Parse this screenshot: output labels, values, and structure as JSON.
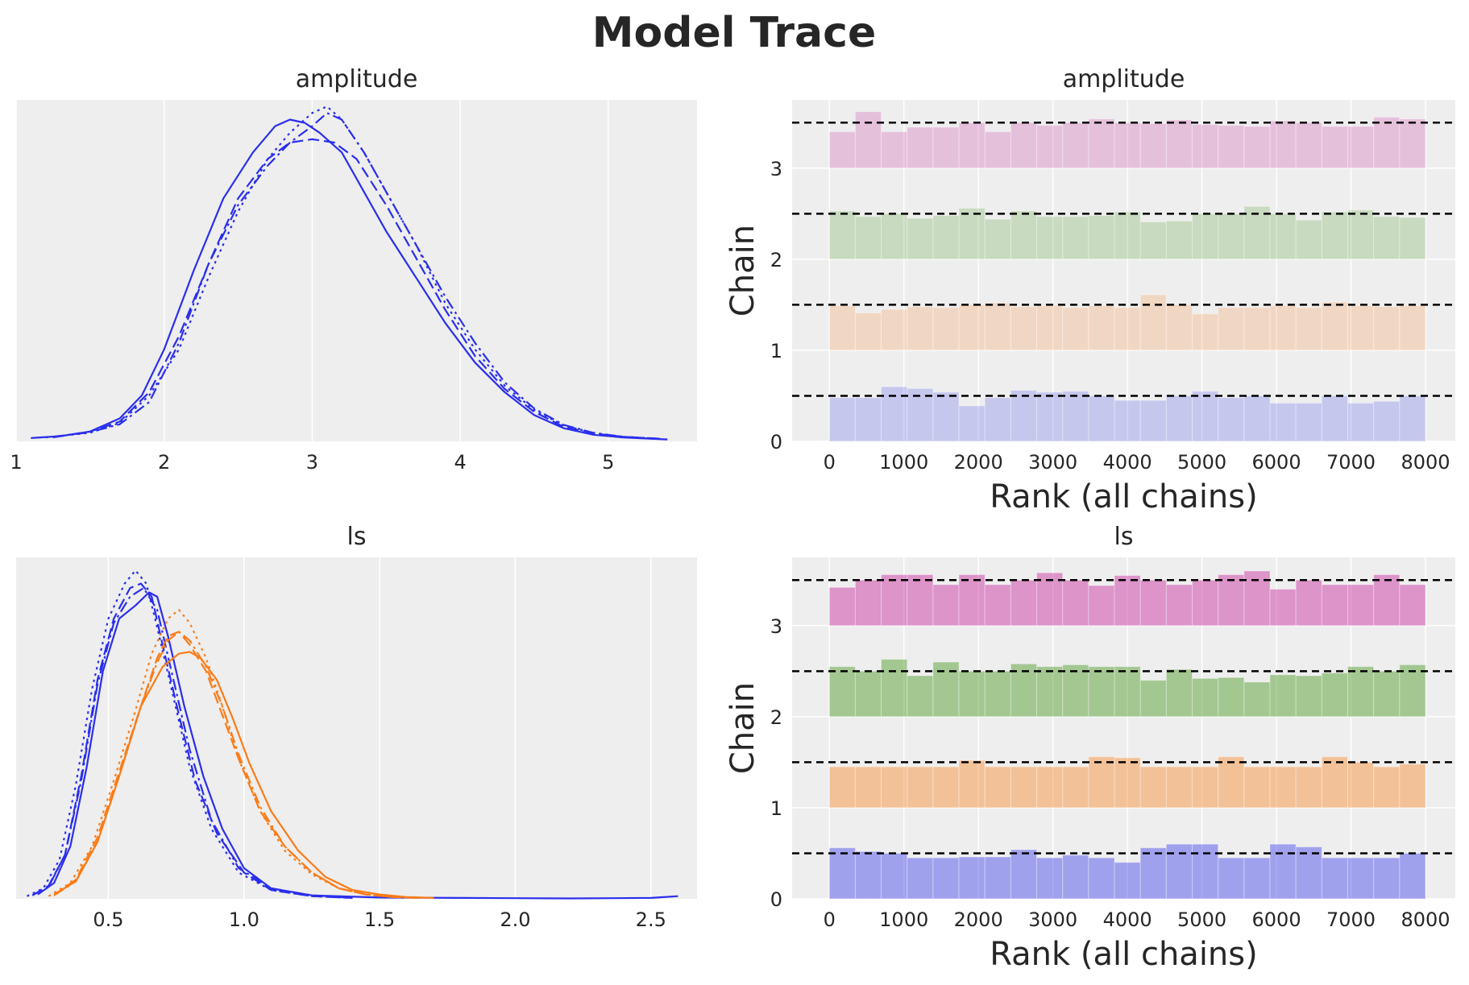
{
  "title": "Model Trace",
  "colors": {
    "background": "#eeeeee",
    "grid": "#ffffff",
    "blue": "#2a2eec",
    "orange": "#fa7c17",
    "chain_colors": [
      "#2a2eec",
      "#fa7c17",
      "#328c06",
      "#c10c90"
    ],
    "reference": "#000000"
  },
  "chart_data": [
    {
      "type": "line",
      "title": "amplitude",
      "xlabel": "",
      "ylabel": "",
      "grid": true,
      "xlim": [
        1.0,
        5.6
      ],
      "ylim": [
        0,
        0.52
      ],
      "x_ticks": [
        1,
        2,
        3,
        4,
        5
      ],
      "x_tick_labels": [
        "1",
        "2",
        "3",
        "4",
        "5"
      ],
      "y_ticks_visible": false,
      "series": [
        {
          "group": 0,
          "linestyle": "solid",
          "x": [
            1.1,
            1.3,
            1.5,
            1.7,
            1.85,
            2.0,
            2.2,
            2.4,
            2.6,
            2.75,
            2.85,
            2.95,
            3.05,
            3.2,
            3.35,
            3.5,
            3.7,
            3.9,
            4.1,
            4.3,
            4.5,
            4.7,
            4.9,
            5.1,
            5.4
          ],
          "y": [
            0.005,
            0.008,
            0.015,
            0.035,
            0.07,
            0.14,
            0.26,
            0.37,
            0.44,
            0.48,
            0.49,
            0.485,
            0.47,
            0.44,
            0.38,
            0.32,
            0.25,
            0.18,
            0.12,
            0.075,
            0.04,
            0.02,
            0.01,
            0.006,
            0.003
          ]
        },
        {
          "group": 0,
          "linestyle": "dashed",
          "x": [
            1.25,
            1.5,
            1.7,
            1.9,
            2.1,
            2.3,
            2.5,
            2.7,
            2.85,
            3.0,
            3.15,
            3.3,
            3.5,
            3.7,
            3.9,
            4.1,
            4.3,
            4.5,
            4.7,
            4.9,
            5.1,
            5.35
          ],
          "y": [
            0.006,
            0.015,
            0.03,
            0.075,
            0.16,
            0.27,
            0.37,
            0.43,
            0.455,
            0.46,
            0.455,
            0.43,
            0.36,
            0.28,
            0.2,
            0.13,
            0.08,
            0.045,
            0.022,
            0.012,
            0.007,
            0.004
          ]
        },
        {
          "group": 0,
          "linestyle": "dotted",
          "x": [
            1.2,
            1.5,
            1.7,
            1.9,
            2.1,
            2.3,
            2.5,
            2.7,
            2.85,
            3.0,
            3.1,
            3.2,
            3.35,
            3.5,
            3.7,
            3.9,
            4.1,
            4.3,
            4.5,
            4.7,
            4.9,
            5.1,
            5.3
          ],
          "y": [
            0.006,
            0.013,
            0.028,
            0.07,
            0.14,
            0.25,
            0.35,
            0.43,
            0.47,
            0.5,
            0.51,
            0.49,
            0.44,
            0.38,
            0.3,
            0.21,
            0.14,
            0.085,
            0.048,
            0.024,
            0.013,
            0.007,
            0.004
          ]
        },
        {
          "group": 0,
          "linestyle": "dashdot",
          "x": [
            1.25,
            1.5,
            1.7,
            1.9,
            2.1,
            2.3,
            2.5,
            2.7,
            2.85,
            3.0,
            3.1,
            3.2,
            3.35,
            3.5,
            3.7,
            3.9,
            4.1,
            4.3,
            4.5,
            4.7,
            4.9,
            5.1,
            5.35
          ],
          "y": [
            0.007,
            0.014,
            0.026,
            0.06,
            0.15,
            0.27,
            0.36,
            0.42,
            0.455,
            0.48,
            0.5,
            0.49,
            0.44,
            0.38,
            0.3,
            0.22,
            0.15,
            0.09,
            0.05,
            0.025,
            0.013,
            0.007,
            0.004
          ]
        }
      ]
    },
    {
      "type": "bar",
      "title": "amplitude",
      "xlabel": "Rank (all chains)",
      "ylabel": "Chain",
      "grid": true,
      "xlim": [
        -500,
        8400
      ],
      "ylim": [
        0,
        3.75
      ],
      "x_ticks": [
        0,
        1000,
        2000,
        3000,
        4000,
        5000,
        6000,
        7000,
        8000
      ],
      "x_tick_labels": [
        "0",
        "1000",
        "2000",
        "3000",
        "4000",
        "5000",
        "6000",
        "7000",
        "8000"
      ],
      "y_ticks": [
        0,
        1,
        2,
        3
      ],
      "y_tick_labels": [
        "0",
        "1",
        "2",
        "3"
      ],
      "bin_edges": [
        0,
        347.8,
        695.7,
        1043.5,
        1391.3,
        1739.1,
        2087,
        2434.8,
        2782.6,
        3130.4,
        3478.3,
        3826.1,
        4173.9,
        4521.7,
        4869.6,
        5217.4,
        5565.2,
        5913,
        6260.9,
        6608.7,
        6956.5,
        7304.3,
        7652.2,
        8000
      ],
      "reference_level": 0.5,
      "chains": [
        {
          "chain": 0,
          "alpha": 0.2,
          "heights": [
            0.48,
            0.48,
            0.6,
            0.58,
            0.54,
            0.39,
            0.48,
            0.56,
            0.54,
            0.55,
            0.5,
            0.45,
            0.45,
            0.5,
            0.55,
            0.48,
            0.5,
            0.42,
            0.42,
            0.5,
            0.42,
            0.44,
            0.5
          ]
        },
        {
          "chain": 1,
          "alpha": 0.2,
          "heights": [
            0.49,
            0.41,
            0.45,
            0.48,
            0.47,
            0.5,
            0.52,
            0.48,
            0.49,
            0.47,
            0.49,
            0.47,
            0.61,
            0.5,
            0.4,
            0.47,
            0.47,
            0.49,
            0.47,
            0.53,
            0.49,
            0.48,
            0.49
          ]
        },
        {
          "chain": 2,
          "alpha": 0.2,
          "heights": [
            0.53,
            0.47,
            0.5,
            0.45,
            0.48,
            0.56,
            0.44,
            0.53,
            0.47,
            0.47,
            0.48,
            0.52,
            0.41,
            0.42,
            0.5,
            0.5,
            0.58,
            0.5,
            0.43,
            0.52,
            0.54,
            0.47,
            0.46
          ]
        },
        {
          "chain": 3,
          "alpha": 0.2,
          "heights": [
            0.4,
            0.62,
            0.4,
            0.45,
            0.45,
            0.5,
            0.4,
            0.5,
            0.47,
            0.5,
            0.54,
            0.5,
            0.49,
            0.53,
            0.48,
            0.47,
            0.46,
            0.52,
            0.5,
            0.46,
            0.46,
            0.56,
            0.54
          ]
        }
      ]
    },
    {
      "type": "line",
      "title": "ls",
      "xlabel": "",
      "ylabel": "",
      "grid": true,
      "xlim": [
        0.16,
        2.67
      ],
      "ylim": [
        0,
        3.9
      ],
      "x_ticks": [
        0.5,
        1.0,
        1.5,
        2.0,
        2.5
      ],
      "x_tick_labels": [
        "0.5",
        "1.0",
        "1.5",
        "2.0",
        "2.5"
      ],
      "y_ticks_visible": false,
      "series": [
        {
          "group": 0,
          "linestyle": "solid",
          "x": [
            0.24,
            0.3,
            0.36,
            0.42,
            0.48,
            0.54,
            0.6,
            0.65,
            0.68,
            0.72,
            0.78,
            0.85,
            0.92,
            1.0,
            1.1,
            1.25,
            1.5,
            1.8,
            2.2,
            2.5,
            2.6
          ],
          "y": [
            0.05,
            0.18,
            0.6,
            1.5,
            2.6,
            3.2,
            3.35,
            3.5,
            3.45,
            3.0,
            2.2,
            1.4,
            0.8,
            0.35,
            0.12,
            0.04,
            0.015,
            0.01,
            0.005,
            0.01,
            0.03
          ]
        },
        {
          "group": 0,
          "linestyle": "dashed",
          "x": [
            0.22,
            0.28,
            0.34,
            0.4,
            0.46,
            0.52,
            0.58,
            0.62,
            0.66,
            0.7,
            0.76,
            0.82,
            0.9,
            1.0,
            1.1,
            1.25,
            1.4
          ],
          "y": [
            0.04,
            0.15,
            0.5,
            1.4,
            2.5,
            3.2,
            3.55,
            3.6,
            3.45,
            2.9,
            2.1,
            1.35,
            0.75,
            0.3,
            0.1,
            0.03,
            0.01
          ]
        },
        {
          "group": 0,
          "linestyle": "dotted",
          "x": [
            0.2,
            0.26,
            0.32,
            0.38,
            0.44,
            0.5,
            0.56,
            0.6,
            0.64,
            0.68,
            0.74,
            0.8,
            0.88,
            0.98,
            1.1,
            1.25,
            1.4
          ],
          "y": [
            0.03,
            0.12,
            0.45,
            1.3,
            2.4,
            3.2,
            3.6,
            3.75,
            3.6,
            3.1,
            2.3,
            1.5,
            0.8,
            0.3,
            0.1,
            0.03,
            0.01
          ]
        },
        {
          "group": 0,
          "linestyle": "dashdot",
          "x": [
            0.22,
            0.28,
            0.34,
            0.4,
            0.46,
            0.52,
            0.58,
            0.63,
            0.68,
            0.74,
            0.8,
            0.88,
            0.98,
            1.1,
            1.25,
            1.4
          ],
          "y": [
            0.04,
            0.14,
            0.5,
            1.35,
            2.45,
            3.15,
            3.45,
            3.55,
            3.3,
            2.5,
            1.7,
            0.9,
            0.35,
            0.12,
            0.04,
            0.01
          ]
        },
        {
          "group": 1,
          "linestyle": "solid",
          "x": [
            0.3,
            0.38,
            0.46,
            0.54,
            0.62,
            0.7,
            0.76,
            0.8,
            0.84,
            0.9,
            0.96,
            1.02,
            1.1,
            1.2,
            1.3,
            1.4,
            1.5,
            1.6,
            1.7
          ],
          "y": [
            0.05,
            0.2,
            0.65,
            1.4,
            2.2,
            2.65,
            2.8,
            2.82,
            2.75,
            2.5,
            2.05,
            1.55,
            1.0,
            0.55,
            0.25,
            0.1,
            0.05,
            0.02,
            0.01
          ]
        },
        {
          "group": 1,
          "linestyle": "dashed",
          "x": [
            0.3,
            0.38,
            0.46,
            0.54,
            0.62,
            0.68,
            0.72,
            0.76,
            0.8,
            0.86,
            0.92,
            0.98,
            1.06,
            1.15,
            1.25,
            1.35,
            1.45,
            1.55,
            1.65
          ],
          "y": [
            0.04,
            0.22,
            0.7,
            1.45,
            2.2,
            2.75,
            3.0,
            3.05,
            2.9,
            2.6,
            2.1,
            1.6,
            1.0,
            0.6,
            0.3,
            0.12,
            0.05,
            0.02,
            0.01
          ]
        },
        {
          "group": 1,
          "linestyle": "dotted",
          "x": [
            0.28,
            0.36,
            0.44,
            0.52,
            0.6,
            0.66,
            0.72,
            0.76,
            0.8,
            0.86,
            0.92,
            0.98,
            1.06,
            1.15,
            1.25,
            1.35,
            1.45,
            1.55,
            1.65
          ],
          "y": [
            0.03,
            0.18,
            0.6,
            1.35,
            2.15,
            2.8,
            3.2,
            3.3,
            3.15,
            2.75,
            2.2,
            1.6,
            1.0,
            0.55,
            0.28,
            0.12,
            0.05,
            0.02,
            0.01
          ]
        },
        {
          "group": 1,
          "linestyle": "dashdot",
          "x": [
            0.3,
            0.38,
            0.46,
            0.54,
            0.62,
            0.68,
            0.72,
            0.76,
            0.8,
            0.86,
            0.92,
            0.98,
            1.06,
            1.15,
            1.25,
            1.35,
            1.45,
            1.55,
            1.65
          ],
          "y": [
            0.04,
            0.2,
            0.65,
            1.4,
            2.2,
            2.7,
            2.95,
            3.05,
            2.95,
            2.65,
            2.2,
            1.65,
            1.05,
            0.6,
            0.3,
            0.12,
            0.05,
            0.02,
            0.01
          ]
        }
      ]
    },
    {
      "type": "bar",
      "title": "ls",
      "xlabel": "Rank (all chains)",
      "ylabel": "Chain",
      "grid": true,
      "xlim": [
        -500,
        8400
      ],
      "ylim": [
        0,
        3.75
      ],
      "x_ticks": [
        0,
        1000,
        2000,
        3000,
        4000,
        5000,
        6000,
        7000,
        8000
      ],
      "x_tick_labels": [
        "0",
        "1000",
        "2000",
        "3000",
        "4000",
        "5000",
        "6000",
        "7000",
        "8000"
      ],
      "y_ticks": [
        0,
        1,
        2,
        3
      ],
      "y_tick_labels": [
        "0",
        "1",
        "2",
        "3"
      ],
      "bin_edges": [
        0,
        347.8,
        695.7,
        1043.5,
        1391.3,
        1739.1,
        2087,
        2434.8,
        2782.6,
        3130.4,
        3478.3,
        3826.1,
        4173.9,
        4521.7,
        4869.6,
        5217.4,
        5565.2,
        5913,
        6260.9,
        6608.7,
        6956.5,
        7304.3,
        7652.2,
        8000
      ],
      "reference_level": 0.5,
      "chains": [
        {
          "chain": 0,
          "alpha": 0.4,
          "heights": [
            0.56,
            0.52,
            0.5,
            0.45,
            0.45,
            0.46,
            0.46,
            0.54,
            0.45,
            0.48,
            0.45,
            0.4,
            0.56,
            0.6,
            0.6,
            0.45,
            0.45,
            0.6,
            0.57,
            0.45,
            0.45,
            0.45,
            0.5
          ]
        },
        {
          "chain": 1,
          "alpha": 0.4,
          "heights": [
            0.45,
            0.45,
            0.45,
            0.45,
            0.45,
            0.52,
            0.45,
            0.45,
            0.45,
            0.45,
            0.56,
            0.55,
            0.45,
            0.45,
            0.45,
            0.56,
            0.45,
            0.45,
            0.45,
            0.56,
            0.5,
            0.45,
            0.48
          ]
        },
        {
          "chain": 2,
          "alpha": 0.4,
          "heights": [
            0.55,
            0.5,
            0.63,
            0.45,
            0.6,
            0.5,
            0.5,
            0.58,
            0.55,
            0.57,
            0.55,
            0.55,
            0.4,
            0.52,
            0.42,
            0.43,
            0.38,
            0.46,
            0.45,
            0.48,
            0.55,
            0.5,
            0.57
          ]
        },
        {
          "chain": 3,
          "alpha": 0.4,
          "heights": [
            0.42,
            0.5,
            0.56,
            0.56,
            0.45,
            0.56,
            0.45,
            0.5,
            0.58,
            0.5,
            0.44,
            0.55,
            0.5,
            0.45,
            0.5,
            0.56,
            0.6,
            0.4,
            0.5,
            0.45,
            0.45,
            0.56,
            0.45
          ]
        }
      ]
    }
  ]
}
